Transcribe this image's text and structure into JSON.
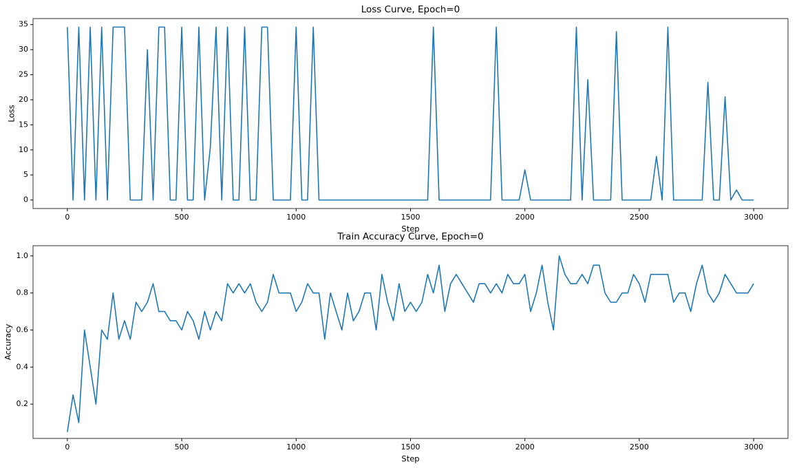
{
  "chart_data": [
    {
      "type": "line",
      "title": "Loss Curve, Epoch=0",
      "x_label": "Step",
      "y_label": "Loss",
      "x": [
        0,
        25,
        50,
        75,
        100,
        125,
        150,
        175,
        200,
        225,
        250,
        275,
        300,
        325,
        350,
        375,
        400,
        425,
        450,
        475,
        500,
        525,
        550,
        575,
        600,
        625,
        650,
        675,
        700,
        725,
        750,
        775,
        800,
        825,
        850,
        875,
        900,
        925,
        950,
        975,
        1000,
        1025,
        1050,
        1075,
        1100,
        1125,
        1150,
        1175,
        1200,
        1225,
        1250,
        1275,
        1300,
        1325,
        1350,
        1375,
        1400,
        1425,
        1450,
        1475,
        1500,
        1525,
        1550,
        1575,
        1600,
        1625,
        1650,
        1675,
        1700,
        1725,
        1750,
        1775,
        1800,
        1825,
        1850,
        1875,
        1900,
        1925,
        1950,
        1975,
        2000,
        2025,
        2050,
        2075,
        2100,
        2125,
        2150,
        2175,
        2200,
        2225,
        2250,
        2275,
        2300,
        2325,
        2350,
        2375,
        2400,
        2425,
        2450,
        2475,
        2500,
        2525,
        2550,
        2575,
        2600,
        2625,
        2650,
        2675,
        2700,
        2725,
        2750,
        2775,
        2800,
        2825,
        2850,
        2875,
        2900,
        2925,
        2950,
        2975,
        3000
      ],
      "series": [
        {
          "color": "#1f77b4",
          "values": [
            34.5,
            0,
            34.5,
            0,
            34.5,
            0,
            34.5,
            0,
            34.5,
            34.5,
            34.5,
            0,
            0,
            0,
            30,
            0,
            34.5,
            34.5,
            0,
            0,
            34.5,
            0,
            0,
            34.5,
            0,
            10.5,
            34.5,
            0,
            34.5,
            0,
            0,
            34.5,
            0,
            0,
            34.5,
            34.5,
            0,
            0,
            0,
            0,
            34.5,
            0,
            0,
            34.5,
            0,
            0,
            0,
            0,
            0,
            0,
            0,
            0,
            0,
            0,
            0,
            0,
            0,
            0,
            0,
            0,
            0,
            0,
            0,
            0,
            34.5,
            0,
            0,
            0,
            0,
            0,
            0,
            0,
            0,
            0,
            0,
            34.5,
            0,
            0,
            0,
            0,
            6,
            0,
            0,
            0,
            0,
            0,
            0,
            0,
            0,
            34.5,
            0,
            24,
            0,
            0,
            0,
            0,
            33.6,
            0,
            0,
            0,
            0,
            0,
            0,
            8.7,
            0,
            34.5,
            0,
            0,
            0,
            0,
            0,
            0,
            23.5,
            0,
            0,
            20.6,
            0,
            2,
            0,
            0,
            0
          ]
        }
      ],
      "xlim": [
        -150,
        3150
      ],
      "xticks": [
        0,
        500,
        1000,
        1500,
        2000,
        2500,
        3000
      ],
      "ylim": [
        -1.7,
        36.2
      ],
      "yticks": [
        0,
        5,
        10,
        15,
        20,
        25,
        30,
        35
      ],
      "grid": false
    },
    {
      "type": "line",
      "title": "Train Accuracy Curve, Epoch=0",
      "x_label": "Step",
      "y_label": "Accuracy",
      "x": [
        0,
        25,
        50,
        75,
        100,
        125,
        150,
        175,
        200,
        225,
        250,
        275,
        300,
        325,
        350,
        375,
        400,
        425,
        450,
        475,
        500,
        525,
        550,
        575,
        600,
        625,
        650,
        675,
        700,
        725,
        750,
        775,
        800,
        825,
        850,
        875,
        900,
        925,
        950,
        975,
        1000,
        1025,
        1050,
        1075,
        1100,
        1125,
        1150,
        1175,
        1200,
        1225,
        1250,
        1275,
        1300,
        1325,
        1350,
        1375,
        1400,
        1425,
        1450,
        1475,
        1500,
        1525,
        1550,
        1575,
        1600,
        1625,
        1650,
        1675,
        1700,
        1725,
        1750,
        1775,
        1800,
        1825,
        1850,
        1875,
        1900,
        1925,
        1950,
        1975,
        2000,
        2025,
        2050,
        2075,
        2100,
        2125,
        2150,
        2175,
        2200,
        2225,
        2250,
        2275,
        2300,
        2325,
        2350,
        2375,
        2400,
        2425,
        2450,
        2475,
        2500,
        2525,
        2550,
        2575,
        2600,
        2625,
        2650,
        2675,
        2700,
        2725,
        2750,
        2775,
        2800,
        2825,
        2850,
        2875,
        2900,
        2925,
        2950,
        2975,
        3000
      ],
      "series": [
        {
          "color": "#1f77b4",
          "values": [
            0.05,
            0.25,
            0.1,
            0.6,
            0.4,
            0.2,
            0.6,
            0.55,
            0.8,
            0.55,
            0.65,
            0.55,
            0.75,
            0.7,
            0.75,
            0.85,
            0.7,
            0.7,
            0.65,
            0.65,
            0.6,
            0.7,
            0.65,
            0.55,
            0.7,
            0.6,
            0.7,
            0.65,
            0.85,
            0.8,
            0.85,
            0.8,
            0.85,
            0.75,
            0.7,
            0.75,
            0.9,
            0.8,
            0.8,
            0.8,
            0.7,
            0.75,
            0.85,
            0.8,
            0.8,
            0.55,
            0.8,
            0.7,
            0.6,
            0.8,
            0.65,
            0.7,
            0.8,
            0.8,
            0.6,
            0.9,
            0.75,
            0.65,
            0.85,
            0.7,
            0.75,
            0.7,
            0.75,
            0.9,
            0.8,
            0.95,
            0.7,
            0.85,
            0.9,
            0.85,
            0.8,
            0.75,
            0.85,
            0.85,
            0.8,
            0.85,
            0.8,
            0.9,
            0.85,
            0.85,
            0.9,
            0.7,
            0.8,
            0.95,
            0.75,
            0.6,
            1.0,
            0.9,
            0.85,
            0.85,
            0.9,
            0.85,
            0.95,
            0.95,
            0.8,
            0.75,
            0.75,
            0.8,
            0.8,
            0.9,
            0.85,
            0.75,
            0.9,
            0.9,
            0.9,
            0.9,
            0.75,
            0.8,
            0.8,
            0.7,
            0.85,
            0.95,
            0.8,
            0.75,
            0.8,
            0.9,
            0.85,
            0.8,
            0.8,
            0.8,
            0.85
          ]
        }
      ],
      "xlim": [
        -150,
        3150
      ],
      "xticks": [
        0,
        500,
        1000,
        1500,
        2000,
        2500,
        3000
      ],
      "ylim": [
        0.015,
        1.055
      ],
      "yticks": [
        0.2,
        0.4,
        0.6,
        0.8,
        {
          "value": 1,
          "label": "1.0"
        }
      ],
      "grid": false
    }
  ]
}
